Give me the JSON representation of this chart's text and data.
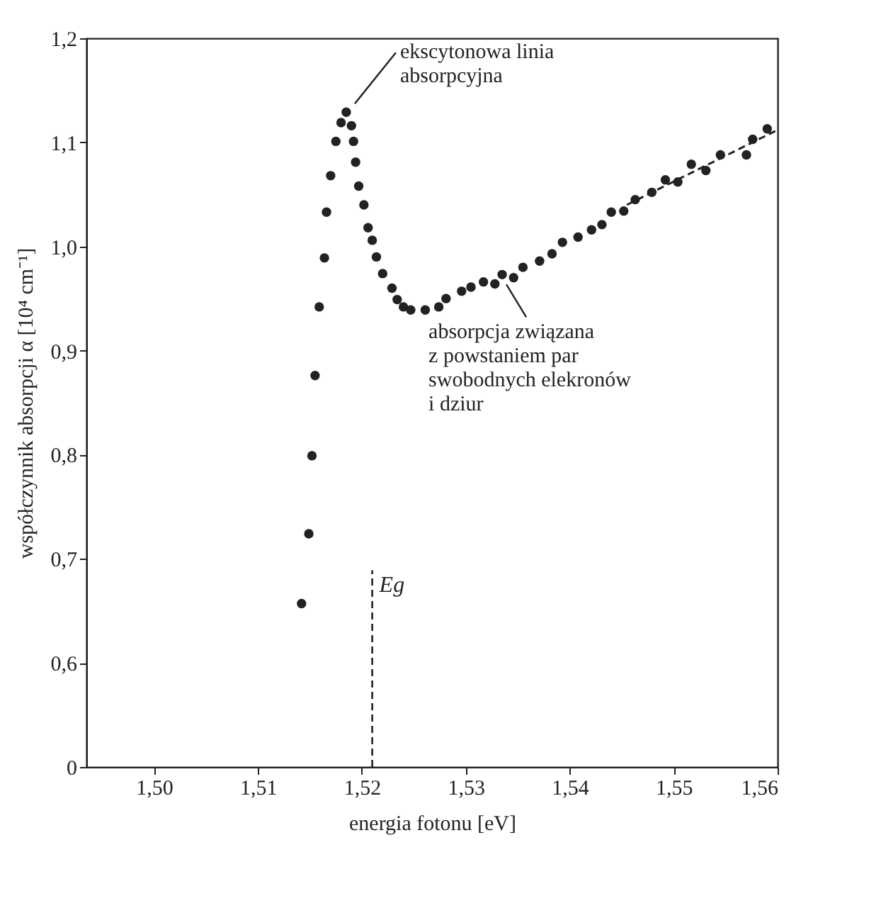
{
  "chart_data": {
    "type": "scatter",
    "xlabel": "energia fotonu [eV]",
    "ylabel": "współczynnik absorpcji α [10⁴ cm⁻¹]",
    "xlim": [
      1.4935,
      1.56
    ],
    "ylim": [
      0.5,
      1.2
    ],
    "xticks": [
      {
        "value": 1.5,
        "label": "1,50"
      },
      {
        "value": 1.51,
        "label": "1,51"
      },
      {
        "value": 1.52,
        "label": "1,52"
      },
      {
        "value": 1.53,
        "label": "1,53"
      },
      {
        "value": 1.54,
        "label": "1,54"
      },
      {
        "value": 1.55,
        "label": "1,55"
      },
      {
        "value": 1.56,
        "label": "1,56"
      }
    ],
    "yticks": [
      {
        "value": 0.5,
        "label": "0"
      },
      {
        "value": 0.6,
        "label": "0,6"
      },
      {
        "value": 0.7,
        "label": "0,7"
      },
      {
        "value": 0.8,
        "label": "0,8"
      },
      {
        "value": 0.9,
        "label": "0,9"
      },
      {
        "value": 1.0,
        "label": "1,0"
      },
      {
        "value": 1.1,
        "label": "1,1"
      },
      {
        "value": 1.2,
        "label": "1,2"
      }
    ],
    "grid": false,
    "marker": "circle",
    "series": [
      {
        "color": "#222222",
        "x": [
          1.5142,
          1.5149,
          1.5152,
          1.5155,
          1.5159,
          1.5164,
          1.5166,
          1.517,
          1.5175,
          1.518,
          1.5185,
          1.519,
          1.5192,
          1.5194,
          1.5197,
          1.5202,
          1.5206,
          1.521,
          1.5214,
          1.522,
          1.5229,
          1.5234,
          1.524,
          1.5247,
          1.5261,
          1.5274,
          1.5281,
          1.5296,
          1.5305,
          1.5317,
          1.5328,
          1.5335,
          1.5346,
          1.5355,
          1.5371,
          1.5383,
          1.5393,
          1.5408,
          1.5421,
          1.5431,
          1.544,
          1.5452,
          1.5463,
          1.5479,
          1.5492,
          1.5504,
          1.5517,
          1.5531,
          1.5545,
          1.557,
          1.5576,
          1.559
        ],
        "values": [
          0.657,
          0.724,
          0.799,
          0.876,
          0.942,
          0.989,
          1.033,
          1.068,
          1.101,
          1.119,
          1.129,
          1.116,
          1.101,
          1.081,
          1.058,
          1.04,
          1.018,
          1.006,
          0.99,
          0.974,
          0.96,
          0.949,
          0.942,
          0.939,
          0.939,
          0.942,
          0.95,
          0.957,
          0.961,
          0.966,
          0.964,
          0.973,
          0.97,
          0.98,
          0.986,
          0.993,
          1.004,
          1.009,
          1.016,
          1.021,
          1.033,
          1.034,
          1.045,
          1.052,
          1.064,
          1.062,
          1.079,
          1.073,
          1.088,
          1.088,
          1.103,
          1.113
        ]
      },
      {
        "type": "line",
        "color": "#222222",
        "line_style": "dashed",
        "marker": "none",
        "x": [
          1.5455,
          1.56
        ],
        "values": [
          1.04,
          1.112
        ]
      }
    ],
    "ref_lines": [
      {
        "axis": "x",
        "value": 1.521,
        "label": "Eg",
        "line_style": "dashed",
        "color": "#222222"
      }
    ],
    "annotations": [
      {
        "text": "ekscytonowa linia\nabsorpcyjna",
        "x": 1.5185,
        "y": 1.129
      },
      {
        "text": "absorpcja związana\nz powstaniem par\nswobodnych elekronów\ni dziur",
        "x": 1.5335,
        "y": 0.973
      }
    ]
  }
}
